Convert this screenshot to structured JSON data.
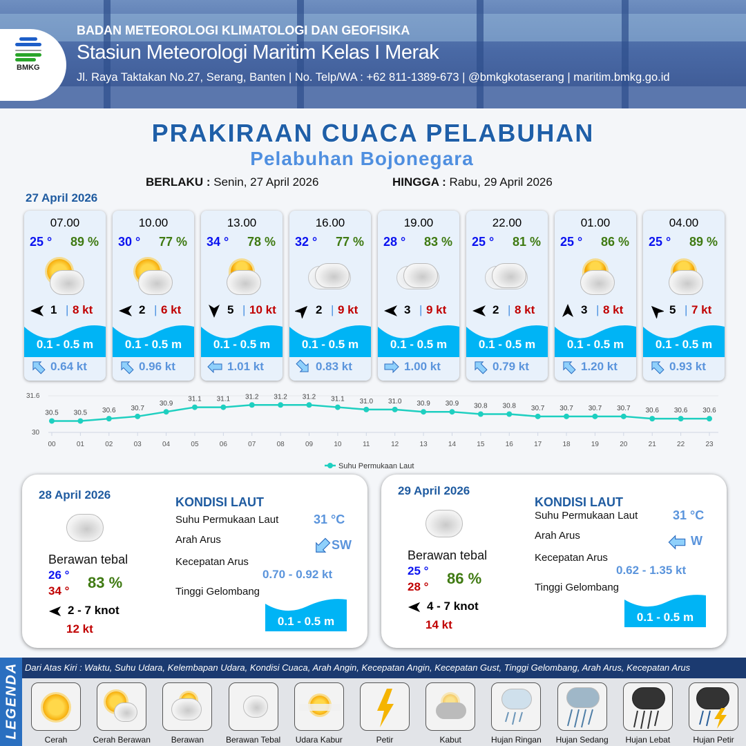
{
  "header": {
    "org": "BADAN METEOROLOGI KLIMATOLOGI DAN GEOFISIKA",
    "station": "Stasiun Meteorologi Maritim Kelas I Merak",
    "contact": "Jl. Raya Taktakan No.27, Serang, Banten | No. Telp/WA : +62 811-1389-673 | @bmkgkotaserang | maritim.bmkg.go.id",
    "logo_text": "BMKG"
  },
  "title": "PRAKIRAAN CUACA PELABUHAN",
  "subtitle": "Pelabuhan Bojonegara",
  "validity": {
    "from_label": "BERLAKU :",
    "from": "Senin, 27 April 2026",
    "to_label": "HINGGA :",
    "to": "Rabu, 29 April 2026"
  },
  "day1": {
    "date": "27 April 2026",
    "forecasts": [
      {
        "time": "07.00",
        "temp": "25 °",
        "hum": "89 %",
        "weather": "Cerah Berawan",
        "wind_dir": "W",
        "wind": "1",
        "gust": "8 kt",
        "wave": "0.1 - 0.5 m",
        "current_dir": "NW",
        "current": "0.64 kt"
      },
      {
        "time": "10.00",
        "temp": "30 °",
        "hum": "77 %",
        "weather": "Cerah Berawan",
        "wind_dir": "W",
        "wind": "2",
        "gust": "6 kt",
        "wave": "0.1 - 0.5 m",
        "current_dir": "NW",
        "current": "0.96 kt"
      },
      {
        "time": "13.00",
        "temp": "34 °",
        "hum": "78 %",
        "weather": "Berawan",
        "wind_dir": "S",
        "wind": "5",
        "gust": "10 kt",
        "wave": "0.1 - 0.5 m",
        "current_dir": "W",
        "current": "1.01 kt"
      },
      {
        "time": "16.00",
        "temp": "32 °",
        "hum": "77 %",
        "weather": "Berawan Tebal",
        "wind_dir": "NE",
        "wind": "2",
        "gust": "9 kt",
        "wave": "0.1 - 0.5 m",
        "current_dir": "SE",
        "current": "0.83 kt"
      },
      {
        "time": "19.00",
        "temp": "28 °",
        "hum": "83 %",
        "weather": "Berawan Tebal",
        "wind_dir": "W",
        "wind": "3",
        "gust": "9 kt",
        "wave": "0.1 - 0.5 m",
        "current_dir": "E",
        "current": "1.00 kt"
      },
      {
        "time": "22.00",
        "temp": "25 °",
        "hum": "81 %",
        "weather": "Berawan Tebal",
        "wind_dir": "W",
        "wind": "2",
        "gust": "8 kt",
        "wave": "0.1 - 0.5 m",
        "current_dir": "NW",
        "current": "0.79 kt"
      },
      {
        "time": "01.00",
        "temp": "25 °",
        "hum": "86 %",
        "weather": "Berawan",
        "wind_dir": "N",
        "wind": "3",
        "gust": "8 kt",
        "wave": "0.1 - 0.5 m",
        "current_dir": "NW",
        "current": "1.20 kt"
      },
      {
        "time": "04.00",
        "temp": "25 °",
        "hum": "89 %",
        "weather": "Berawan",
        "wind_dir": "NW",
        "wind": "5",
        "gust": "7 kt",
        "wave": "0.1 - 0.5 m",
        "current_dir": "NW",
        "current": "0.93 kt"
      }
    ]
  },
  "chart_data": {
    "type": "line",
    "categories": [
      "00",
      "01",
      "02",
      "03",
      "04",
      "05",
      "06",
      "07",
      "08",
      "09",
      "10",
      "11",
      "12",
      "13",
      "14",
      "15",
      "16",
      "17",
      "18",
      "19",
      "20",
      "21",
      "22",
      "23"
    ],
    "series": [
      {
        "name": "Suhu Permukaan Laut",
        "values": [
          30.5,
          30.5,
          30.6,
          30.7,
          30.9,
          31.1,
          31.1,
          31.2,
          31.2,
          31.2,
          31.1,
          31.0,
          31.0,
          30.9,
          30.9,
          30.8,
          30.8,
          30.7,
          30.7,
          30.7,
          30.7,
          30.6,
          30.6,
          30.6
        ]
      }
    ],
    "ylim": [
      30,
      31.6
    ],
    "yticks": [
      "30",
      "31.6"
    ],
    "legend": "bottom",
    "color": "#1ecfc0"
  },
  "days": [
    {
      "date": "28 April 2026",
      "weather": "Berawan tebal",
      "tmin": "26 °",
      "tmax": "34 °",
      "hum": "83 %",
      "wind_dir": "W",
      "wind": "2  - 7 knot",
      "gust": "12 kt",
      "sea_title": "KONDISI LAUT",
      "sst_label": "Suhu Permukaan Laut",
      "sst": "31 °C",
      "cur_dir_label": "Arah Arus",
      "cur_dir": "SW",
      "cur_spd_label": "Kecepatan Arus",
      "cur_spd": "0.70 - 0.92 kt",
      "wave_label": "Tinggi Gelombang",
      "wave": "0.1 - 0.5 m"
    },
    {
      "date": "29 April 2026",
      "weather": "Berawan tebal",
      "tmin": "25 °",
      "tmax": "28 °",
      "hum": "86 %",
      "wind_dir": "W",
      "wind": "4  - 7 knot",
      "gust": "14 kt",
      "sea_title": "KONDISI LAUT",
      "sst_label": "Suhu Permukaan Laut",
      "sst": "31 °C",
      "cur_dir_label": "Arah Arus",
      "cur_dir": "W",
      "cur_spd_label": "Kecepatan Arus",
      "cur_spd": "0.62  - 1.35 kt",
      "wave_label": "Tinggi Gelombang",
      "wave": "0.1 - 0.5 m"
    }
  ],
  "legend": {
    "title": "LEGENDA",
    "description": "Dari Atas Kiri : Waktu, Suhu Udara, Kelembapan Udara, Kondisi Cuaca, Arah Angin, Kecepatan Angin, Kecepatan Gust, Tinggi Gelombang, Arah Arus, Kecepatan Arus",
    "items": [
      "Cerah",
      "Cerah Berawan",
      "Berawan",
      "Berawan Tebal",
      "Udara Kabur",
      "Petir",
      "Kabut",
      "Hujan Ringan",
      "Hujan Sedang",
      "Hujan Lebat",
      "Hujan Petir"
    ]
  },
  "colors": {
    "temp": "#0a12f0",
    "humidity": "#3f7a12",
    "gust": "#c00000",
    "wave": "#00b4f5",
    "current": "#5a94dc",
    "title": "#1f5fa8"
  }
}
